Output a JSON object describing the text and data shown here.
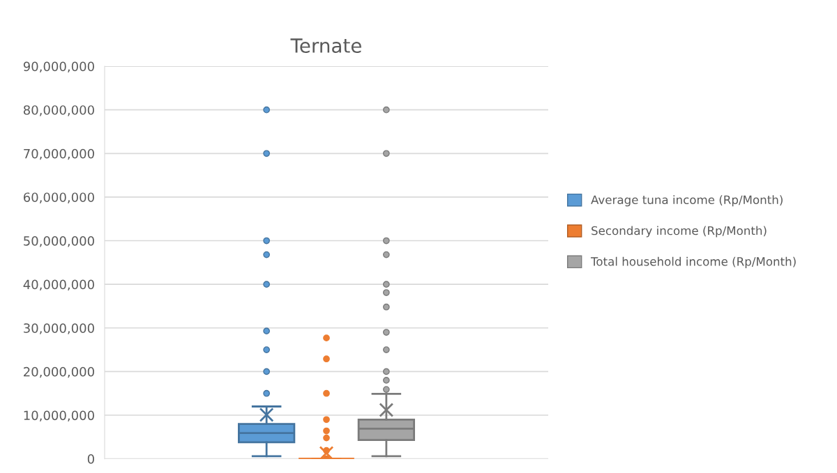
{
  "chart_data": {
    "type": "box",
    "title": "Ternate",
    "categories": [
      null
    ],
    "series": [
      {
        "name": "Average tuna income (Rp/Month)",
        "color": "#5b9bd5",
        "boxes": [
          {
            "low": 600000,
            "q1": 3800000,
            "median": 5900000,
            "q3": 8000000,
            "high": 12000000,
            "mean": 10100000,
            "outliers": [
              80000000,
              70000000,
              50000000,
              46800000,
              40000000,
              29300000,
              25000000,
              20000000,
              15000000
            ]
          }
        ]
      },
      {
        "name": "Secondary income (Rp/Month)",
        "color": "#ed7d31",
        "boxes": [
          {
            "low": 0,
            "q1": 0,
            "median": 0,
            "q3": 0,
            "high": 0,
            "mean": 1300000,
            "outliers": [
              27700000,
              22900000,
              15000000,
              9000000,
              6400000,
              4800000,
              1900000,
              0
            ]
          }
        ]
      },
      {
        "name": "Total household income (Rp/Month)",
        "color": "#a5a5a5",
        "boxes": [
          {
            "low": 600000,
            "q1": 4300000,
            "median": 6900000,
            "q3": 9000000,
            "high": 14900000,
            "mean": 11200000,
            "outliers": [
              80000000,
              70000000,
              50000000,
              46800000,
              40000000,
              38100000,
              34800000,
              29000000,
              25000000,
              20000000,
              18000000,
              15900000
            ]
          }
        ]
      }
    ],
    "ylim": [
      0,
      90000000
    ],
    "yticks": [
      {
        "value": 0,
        "label": "0"
      },
      {
        "value": 10000000,
        "label": "10,000,000"
      },
      {
        "value": 20000000,
        "label": "20,000,000"
      },
      {
        "value": 30000000,
        "label": "30,000,000"
      },
      {
        "value": 40000000,
        "label": "40,000,000"
      },
      {
        "value": 50000000,
        "label": "50,000,000"
      },
      {
        "value": 60000000,
        "label": "60,000,000"
      },
      {
        "value": 70000000,
        "label": "70,000,000"
      },
      {
        "value": 80000000,
        "label": "80,000,000"
      },
      {
        "value": 90000000,
        "label": "90,000,000"
      }
    ],
    "grid": "y",
    "legend": "right",
    "marker": "circle"
  }
}
